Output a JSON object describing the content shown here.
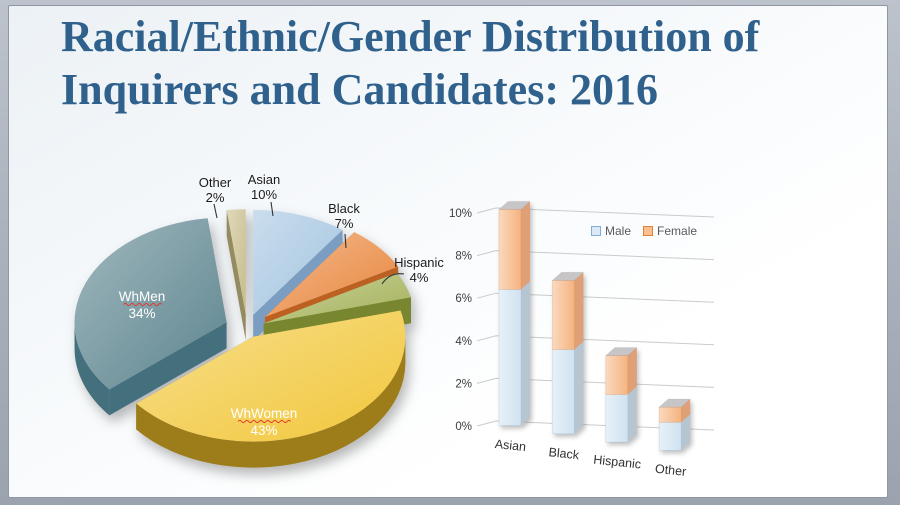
{
  "slide": {
    "title": "Racial/Ethnic/Gender Distribution of Inquirers and Candidates: 2016",
    "title_color": "#2f618c"
  },
  "chart_data": [
    {
      "type": "pie",
      "name": "racial-ethnic-gender-pie",
      "style": "3d-exploded",
      "start_angle": "12-oclock",
      "direction": "clockwise",
      "unit": "percent",
      "slices": [
        {
          "label": "Asian",
          "value": 10,
          "pct_label": "10%",
          "color": "#a3c4e0",
          "dark": "#7b9dc1",
          "label_placement": "outside"
        },
        {
          "label": "Black",
          "value": 7,
          "pct_label": "7%",
          "color": "#e9863c",
          "dark": "#bc6121",
          "label_placement": "outside"
        },
        {
          "label": "Hispanic",
          "value": 4,
          "pct_label": "4%",
          "color": "#a4b158",
          "dark": "#77862f",
          "label_placement": "outside"
        },
        {
          "label": "WhWomen",
          "value": 43,
          "pct_label": "43%",
          "color": "#f2c73b",
          "dark": "#9d7c1a",
          "label_placement": "inside"
        },
        {
          "label": "WhMen",
          "value": 34,
          "pct_label": "34%",
          "color": "#5d858f",
          "dark": "#44707d",
          "label_placement": "inside"
        },
        {
          "label": "Other",
          "value": 2,
          "pct_label": "2%",
          "color": "#c7bc8a",
          "dark": "#948b60",
          "label_placement": "outside"
        }
      ]
    },
    {
      "type": "bar",
      "name": "gender-by-race-stacked-bars",
      "style": "3d-stacked-column",
      "stacked": true,
      "grid": true,
      "legend_position": "top-right-inside",
      "categories": [
        "Asian",
        "Black",
        "Hispanic",
        "Other"
      ],
      "series": [
        {
          "name": "Male",
          "values": [
            6.3,
            3.9,
            2.2,
            1.3
          ],
          "color": "#cfe2f1",
          "side": "#b7c5d1",
          "border": "#8db3d6",
          "swatch_fill": "#d9e9f7",
          "swatch_border": "#86aed3"
        },
        {
          "name": "Female",
          "values": [
            3.7,
            3.2,
            1.8,
            0.7
          ],
          "color": "#f5b37f",
          "side": "#dfa077",
          "border": "#e0813a",
          "swatch_fill": "#fac092",
          "swatch_border": "#e0813a"
        }
      ],
      "ylim": [
        0,
        10
      ],
      "yticks": [
        "0%",
        "2%",
        "4%",
        "6%",
        "8%",
        "10%"
      ]
    }
  ]
}
